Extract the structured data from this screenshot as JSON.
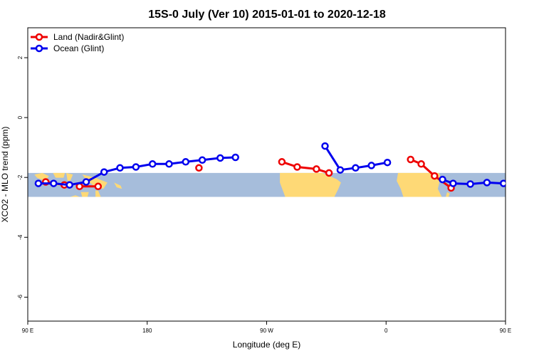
{
  "chart_data": {
    "type": "line",
    "title": "15S-0 July (Ver 10)   2015-01-01 to 2020-12-18",
    "xlabel": "Longitude (deg E)",
    "ylabel": "XCO2 - MLO trend (ppm)",
    "xlim": [
      90,
      450
    ],
    "ylim": [
      -6.8,
      3.0
    ],
    "x_ticks": [
      {
        "value": 90,
        "label": "90 E"
      },
      {
        "value": 180,
        "label": "180"
      },
      {
        "value": 270,
        "label": "90 W"
      },
      {
        "value": 360,
        "label": "0"
      },
      {
        "value": 450,
        "label": "90 E"
      },
      {
        "value": 540,
        "label": "180"
      }
    ],
    "y_ticks": [
      {
        "value": 2,
        "label": "2"
      },
      {
        "value": 0,
        "label": "0"
      },
      {
        "value": -2,
        "label": "-2"
      },
      {
        "value": -4,
        "label": "-4"
      },
      {
        "value": -6,
        "label": "-6"
      }
    ],
    "map_strip": {
      "lat_range": [
        -15,
        0
      ],
      "y_range": [
        -2.65,
        -1.85
      ],
      "ocean_color": "#a6bddb",
      "land_color": "#fed976"
    },
    "legend": {
      "position": "top-left"
    },
    "series": [
      {
        "name": "Land (Nadir&Glint)",
        "color": "#ee0000",
        "segments": [
          [
            {
              "x": 103.5,
              "y": -2.15
            },
            {
              "x": 117.5,
              "y": -2.25
            }
          ],
          [
            {
              "x": 129,
              "y": -2.3
            },
            {
              "x": 143,
              "y": -2.3
            }
          ],
          [
            {
              "x": 219,
              "y": -1.68
            }
          ],
          [
            {
              "x": 281.5,
              "y": -1.48
            },
            {
              "x": 293,
              "y": -1.65
            },
            {
              "x": 307.5,
              "y": -1.72
            },
            {
              "x": 317,
              "y": -1.85
            }
          ],
          [
            {
              "x": 378.5,
              "y": -1.4
            },
            {
              "x": 386.5,
              "y": -1.55
            },
            {
              "x": 396.5,
              "y": -1.95
            },
            {
              "x": 409,
              "y": -2.35
            }
          ],
          [
            {
              "x": 476,
              "y": -2.15
            },
            {
              "x": 484,
              "y": -2.2
            }
          ],
          [
            {
              "x": 496,
              "y": -2.3
            },
            {
              "x": 509,
              "y": -2.32
            }
          ]
        ]
      },
      {
        "name": "Ocean (Glint)",
        "color": "#0000ee",
        "segments": [
          [
            {
              "x": 98,
              "y": -2.2
            },
            {
              "x": 109.5,
              "y": -2.2
            },
            {
              "x": 121.5,
              "y": -2.25
            },
            {
              "x": 134,
              "y": -2.15
            },
            {
              "x": 147.5,
              "y": -1.82
            },
            {
              "x": 159.5,
              "y": -1.68
            },
            {
              "x": 171.5,
              "y": -1.65
            },
            {
              "x": 184,
              "y": -1.55
            },
            {
              "x": 196.5,
              "y": -1.55
            },
            {
              "x": 209,
              "y": -1.48
            },
            {
              "x": 221.5,
              "y": -1.42
            },
            {
              "x": 235,
              "y": -1.35
            },
            {
              "x": 246.5,
              "y": -1.33
            }
          ],
          [
            {
              "x": 314,
              "y": -0.95
            },
            {
              "x": 325.5,
              "y": -1.75
            },
            {
              "x": 337,
              "y": -1.68
            },
            {
              "x": 349,
              "y": -1.6
            },
            {
              "x": 361,
              "y": -1.5
            }
          ],
          [
            {
              "x": 402.5,
              "y": -2.07
            },
            {
              "x": 410.5,
              "y": -2.2
            },
            {
              "x": 423.5,
              "y": -2.22
            },
            {
              "x": 436,
              "y": -2.17
            },
            {
              "x": 448.5,
              "y": -2.2
            },
            {
              "x": 461,
              "y": -2.2
            },
            {
              "x": 473.5,
              "y": -2.22
            },
            {
              "x": 486,
              "y": -2.25
            },
            {
              "x": 498.5,
              "y": -2.15
            },
            {
              "x": 511,
              "y": -1.82
            },
            {
              "x": 523.5,
              "y": -1.68
            }
          ]
        ]
      }
    ]
  }
}
